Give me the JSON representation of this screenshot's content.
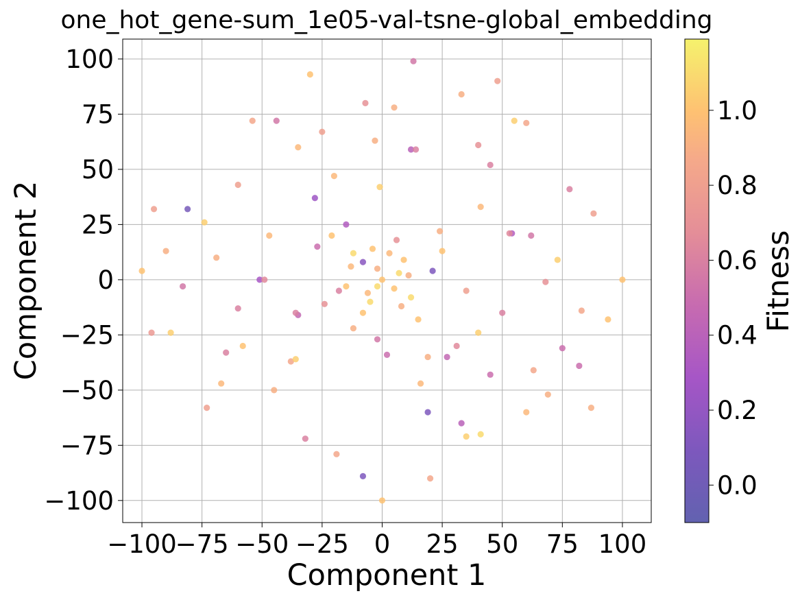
{
  "chart_data": {
    "type": "scatter",
    "title": "one_hot_gene-sum_1e05-val-tsne-global_embedding",
    "xlabel": "Component 1",
    "ylabel": "Component 2",
    "xlim": [
      -108,
      112
    ],
    "ylim": [
      -110,
      109
    ],
    "xticks": [
      -100,
      -75,
      -50,
      -25,
      0,
      25,
      50,
      75,
      100
    ],
    "yticks": [
      -100,
      -75,
      -50,
      -25,
      0,
      25,
      50,
      75,
      100
    ],
    "xtick_labels": [
      "−100",
      "−75",
      "−50",
      "−25",
      "0",
      "25",
      "50",
      "75",
      "100"
    ],
    "ytick_labels": [
      "−100",
      "−75",
      "−50",
      "−25",
      "0",
      "25",
      "50",
      "75",
      "100"
    ],
    "grid": true,
    "colormap": "plasma",
    "colorbar": {
      "label": "Fitness",
      "range": [
        -0.1,
        1.19
      ],
      "ticks": [
        0.0,
        0.2,
        0.4,
        0.6,
        0.8,
        1.0
      ],
      "tick_labels": [
        "0.0",
        "0.2",
        "0.4",
        "0.6",
        "0.8",
        "1.0"
      ]
    },
    "points": [
      [
        -81,
        32,
        0.05
      ],
      [
        21,
        4,
        0.1
      ],
      [
        -8,
        -89,
        0.1
      ],
      [
        19,
        -60,
        0.1
      ],
      [
        -8,
        8,
        0.15
      ],
      [
        -28,
        37,
        0.25
      ],
      [
        -51,
        0,
        0.3
      ],
      [
        54,
        21,
        0.35
      ],
      [
        -15,
        25,
        0.35
      ],
      [
        12,
        59,
        0.4
      ],
      [
        33,
        -65,
        0.4
      ],
      [
        -35,
        -16,
        0.45
      ],
      [
        27,
        -35,
        0.45
      ],
      [
        -27,
        15,
        0.5
      ],
      [
        2,
        -34,
        0.5
      ],
      [
        45,
        -43,
        0.5
      ],
      [
        75,
        -31,
        0.5
      ],
      [
        82,
        -39,
        0.5
      ],
      [
        -44,
        72,
        0.55
      ],
      [
        -83,
        -3,
        0.55
      ],
      [
        62,
        20,
        0.55
      ],
      [
        -2,
        -27,
        0.55
      ],
      [
        13,
        99,
        0.55
      ],
      [
        -36,
        -15,
        0.6
      ],
      [
        50,
        -15,
        0.6
      ],
      [
        -60,
        -13,
        0.6
      ],
      [
        45,
        52,
        0.6
      ],
      [
        -32,
        -72,
        0.6
      ],
      [
        14,
        59,
        0.6
      ],
      [
        78,
        41,
        0.6
      ],
      [
        -18,
        -5,
        0.6
      ],
      [
        -65,
        -33,
        0.6
      ],
      [
        31,
        -30,
        0.65
      ],
      [
        -49,
        0,
        0.65
      ],
      [
        53,
        21,
        0.65
      ],
      [
        6,
        18,
        0.7
      ],
      [
        -7,
        80,
        0.7
      ],
      [
        40,
        61,
        0.7
      ],
      [
        68,
        -1,
        0.7
      ],
      [
        -24,
        -11,
        0.7
      ],
      [
        -96,
        -24,
        0.75
      ],
      [
        -95,
        32,
        0.8
      ],
      [
        -73,
        -58,
        0.8
      ],
      [
        48,
        90,
        0.8
      ],
      [
        -25,
        67,
        0.8
      ],
      [
        -60,
        43,
        0.8
      ],
      [
        35,
        -5,
        0.8
      ],
      [
        88,
        30,
        0.8
      ],
      [
        -54,
        72,
        0.85
      ],
      [
        83,
        -14,
        0.85
      ],
      [
        20,
        -90,
        0.85
      ],
      [
        63,
        -41,
        0.85
      ],
      [
        -38,
        -37,
        0.85
      ],
      [
        -19,
        -79,
        0.85
      ],
      [
        60,
        71,
        0.85
      ],
      [
        5,
        78,
        0.9
      ],
      [
        -90,
        13,
        0.9
      ],
      [
        33,
        84,
        0.9
      ],
      [
        -69,
        10,
        0.9
      ],
      [
        87,
        -58,
        0.9
      ],
      [
        -3,
        63,
        0.9
      ],
      [
        19,
        -35,
        0.9
      ],
      [
        69,
        -52,
        0.9
      ],
      [
        -45,
        -50,
        0.9
      ],
      [
        24,
        22,
        0.9
      ],
      [
        -12,
        -22,
        0.9
      ],
      [
        8,
        -12,
        0.9
      ],
      [
        -2,
        5,
        0.9
      ],
      [
        11,
        2,
        0.9
      ],
      [
        -6,
        -6,
        0.95
      ],
      [
        3,
        12,
        0.95
      ],
      [
        -13,
        6,
        0.95
      ],
      [
        -35,
        60,
        0.95
      ],
      [
        60,
        -60,
        0.95
      ],
      [
        -67,
        -47,
        0.95
      ],
      [
        41,
        33,
        0.95
      ],
      [
        -20,
        47,
        0.95
      ],
      [
        -47,
        20,
        0.95
      ],
      [
        16,
        -47,
        0.95
      ],
      [
        -58,
        -30,
        1.0
      ],
      [
        -30,
        93,
        1.0
      ],
      [
        94,
        -18,
        1.0
      ],
      [
        -100,
        4,
        1.0
      ],
      [
        0,
        -100,
        1.0
      ],
      [
        100,
        0,
        1.0
      ],
      [
        -8,
        -15,
        1.0
      ],
      [
        9,
        9,
        1.0
      ],
      [
        0,
        0,
        1.0
      ],
      [
        -4,
        14,
        1.0
      ],
      [
        5,
        -4,
        1.0
      ],
      [
        -15,
        -3,
        1.0
      ],
      [
        15,
        -18,
        1.0
      ],
      [
        -21,
        20,
        1.0
      ],
      [
        25,
        13,
        1.0
      ],
      [
        -36,
        -36,
        1.05
      ],
      [
        35,
        -71,
        1.05
      ],
      [
        -74,
        26,
        1.05
      ],
      [
        73,
        9,
        1.05
      ],
      [
        -1,
        42,
        1.05
      ],
      [
        40,
        -24,
        1.05
      ],
      [
        -88,
        -24,
        1.05
      ],
      [
        55,
        72,
        1.05
      ],
      [
        41,
        -70,
        1.1
      ],
      [
        -2,
        -3,
        1.1
      ],
      [
        7,
        3,
        1.1
      ],
      [
        -5,
        -10,
        1.1
      ],
      [
        12,
        -8,
        1.1
      ],
      [
        -12,
        12,
        1.1
      ]
    ]
  }
}
